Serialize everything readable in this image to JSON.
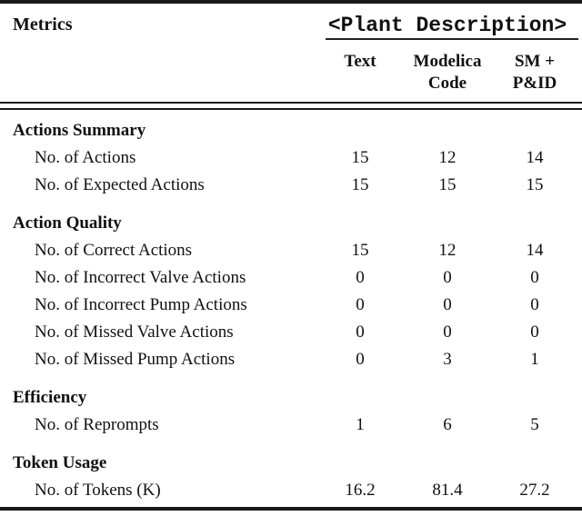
{
  "table": {
    "header": {
      "metrics_label": "Metrics",
      "group_label": "<Plant Description>",
      "columns": [
        "Text",
        "Modelica Code",
        "SM + P&ID"
      ]
    },
    "sections": [
      {
        "title": "Actions Summary",
        "rows": [
          {
            "label": "No. of Actions",
            "values": [
              "15",
              "12",
              "14"
            ]
          },
          {
            "label": "No. of Expected Actions",
            "values": [
              "15",
              "15",
              "15"
            ]
          }
        ]
      },
      {
        "title": "Action Quality",
        "rows": [
          {
            "label": "No. of Correct Actions",
            "values": [
              "15",
              "12",
              "14"
            ]
          },
          {
            "label": "No. of Incorrect Valve Actions",
            "values": [
              "0",
              "0",
              "0"
            ]
          },
          {
            "label": "No. of Incorrect Pump Actions",
            "values": [
              "0",
              "0",
              "0"
            ]
          },
          {
            "label": "No. of Missed Valve Actions",
            "values": [
              "0",
              "0",
              "0"
            ]
          },
          {
            "label": "No. of Missed Pump Actions",
            "values": [
              "0",
              "3",
              "1"
            ]
          }
        ]
      },
      {
        "title": "Efficiency",
        "rows": [
          {
            "label": "No. of Reprompts",
            "values": [
              "1",
              "6",
              "5"
            ]
          }
        ]
      },
      {
        "title": "Token Usage",
        "rows": [
          {
            "label": "No. of Tokens (K)",
            "values": [
              "16.2",
              "81.4",
              "27.2"
            ]
          }
        ]
      }
    ],
    "colors": {
      "rule": "#1a1a1a",
      "text": "#111111",
      "background": "#ffffff"
    }
  }
}
